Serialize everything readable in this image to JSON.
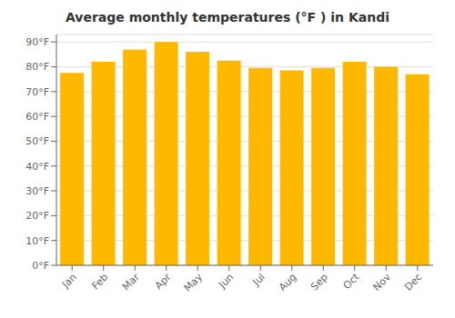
{
  "chart_data": {
    "type": "bar",
    "title": "Average monthly temperatures (°F ) in Kandi",
    "categories": [
      "Jan",
      "Feb",
      "Mar",
      "Apr",
      "May",
      "Jun",
      "Jul",
      "Aug",
      "Sep",
      "Oct",
      "Nov",
      "Dec"
    ],
    "values": [
      77.5,
      82,
      87,
      90,
      86,
      82.5,
      79.5,
      78.5,
      79.5,
      82,
      80,
      77
    ],
    "color": "#FFB800",
    "ylim": [
      0,
      93
    ],
    "yticks": [
      {
        "value": 0,
        "label": "0°F"
      },
      {
        "value": 10,
        "label": "10°F"
      },
      {
        "value": 20,
        "label": "20°F"
      },
      {
        "value": 30,
        "label": "30°F"
      },
      {
        "value": 40,
        "label": "40°F"
      },
      {
        "value": 50,
        "label": "50°F"
      },
      {
        "value": 60,
        "label": "60°F"
      },
      {
        "value": 70,
        "label": "70°F"
      },
      {
        "value": 80,
        "label": "80°F"
      },
      {
        "value": 90,
        "label": "90°F"
      }
    ],
    "grid": true
  }
}
